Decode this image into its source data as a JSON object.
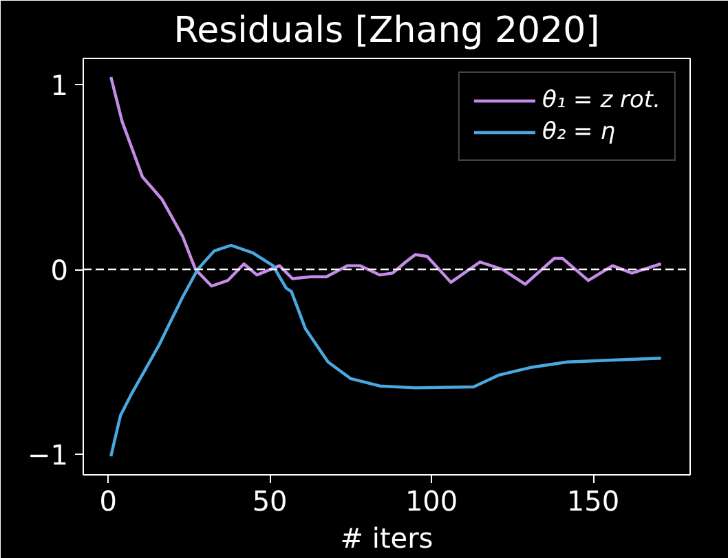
{
  "chart_data": {
    "type": "line",
    "title": "Residuals [Zhang 2020]",
    "xlabel": "# iters",
    "xlim": [
      -7.7,
      180
    ],
    "ylim": [
      -1.11,
      1.14
    ],
    "xticks": [
      0,
      50,
      100,
      150
    ],
    "yticks": [
      -1,
      0,
      1
    ],
    "grid": false,
    "legend": "top right",
    "line_style": "solid",
    "marker": "none",
    "ref_lines": [
      {
        "axis": "y",
        "value": 0,
        "color": "#ffffff",
        "line_style": "dashed"
      }
    ],
    "series": [
      {
        "name": "θ₁ = z rot.",
        "color": "#c58be8",
        "x": [
          0.85,
          4.3,
          10.6,
          16.6,
          23,
          27,
          32,
          37,
          42,
          46,
          53,
          57,
          62.5,
          67.5,
          74,
          78,
          84,
          88,
          92,
          95,
          98.7,
          106,
          115,
          122,
          129,
          138,
          140.5,
          148.5,
          156,
          162,
          171
        ],
        "values": [
          1.04,
          0.8,
          0.5,
          0.38,
          0.18,
          0,
          -0.09,
          -0.06,
          0.03,
          -0.03,
          0.02,
          -0.05,
          -0.04,
          -0.04,
          0.02,
          0.02,
          -0.03,
          -0.02,
          0.04,
          0.08,
          0.07,
          -0.07,
          0.04,
          0,
          -0.08,
          0.06,
          0.06,
          -0.06,
          0.02,
          -0.02,
          0.03
        ]
      },
      {
        "name": "θ₂ = η",
        "color": "#4aa8e0",
        "x": [
          0.85,
          3.8,
          7,
          15.7,
          23,
          27.7,
          32.8,
          38,
          44.7,
          51,
          55,
          56.7,
          61,
          68,
          75,
          84,
          95,
          113,
          121,
          130.6,
          142,
          156,
          171
        ],
        "values": [
          -1.01,
          -0.79,
          -0.68,
          -0.41,
          -0.15,
          0,
          0.1,
          0.13,
          0.09,
          0.02,
          -0.1,
          -0.12,
          -0.32,
          -0.5,
          -0.59,
          -0.63,
          -0.64,
          -0.635,
          -0.57,
          -0.53,
          -0.5,
          -0.49,
          -0.48
        ]
      }
    ]
  }
}
